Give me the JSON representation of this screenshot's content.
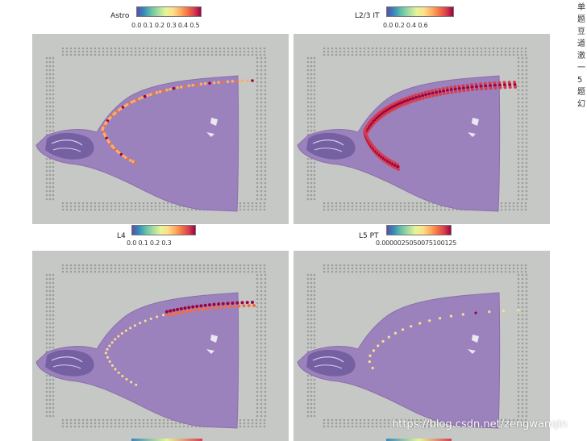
{
  "panels": [
    {
      "title": "Astro",
      "ticks": "0.0 0.1 0.2 0.3 0.4 0.5",
      "pattern": "astro"
    },
    {
      "title": "L2/3 IT",
      "ticks": "0.0      0.2      0.4      0.6",
      "pattern": "l23"
    },
    {
      "title": "L4",
      "ticks": "0.0     0.1     0.2     0.3",
      "pattern": "l4"
    },
    {
      "title": "L5 PT",
      "ticks": "0.0000025050075100125",
      "pattern": "l5"
    }
  ],
  "side_text": "单 题 豆 道 激 一 5 题 幻",
  "watermark": "https://blog.csdn.net/zengwanqin",
  "colors": {
    "background": "#c6c8c6",
    "tissue": "#9a7bb8",
    "high": "#9e0142",
    "mid": "#f46d43",
    "low": "#fee08b"
  }
}
